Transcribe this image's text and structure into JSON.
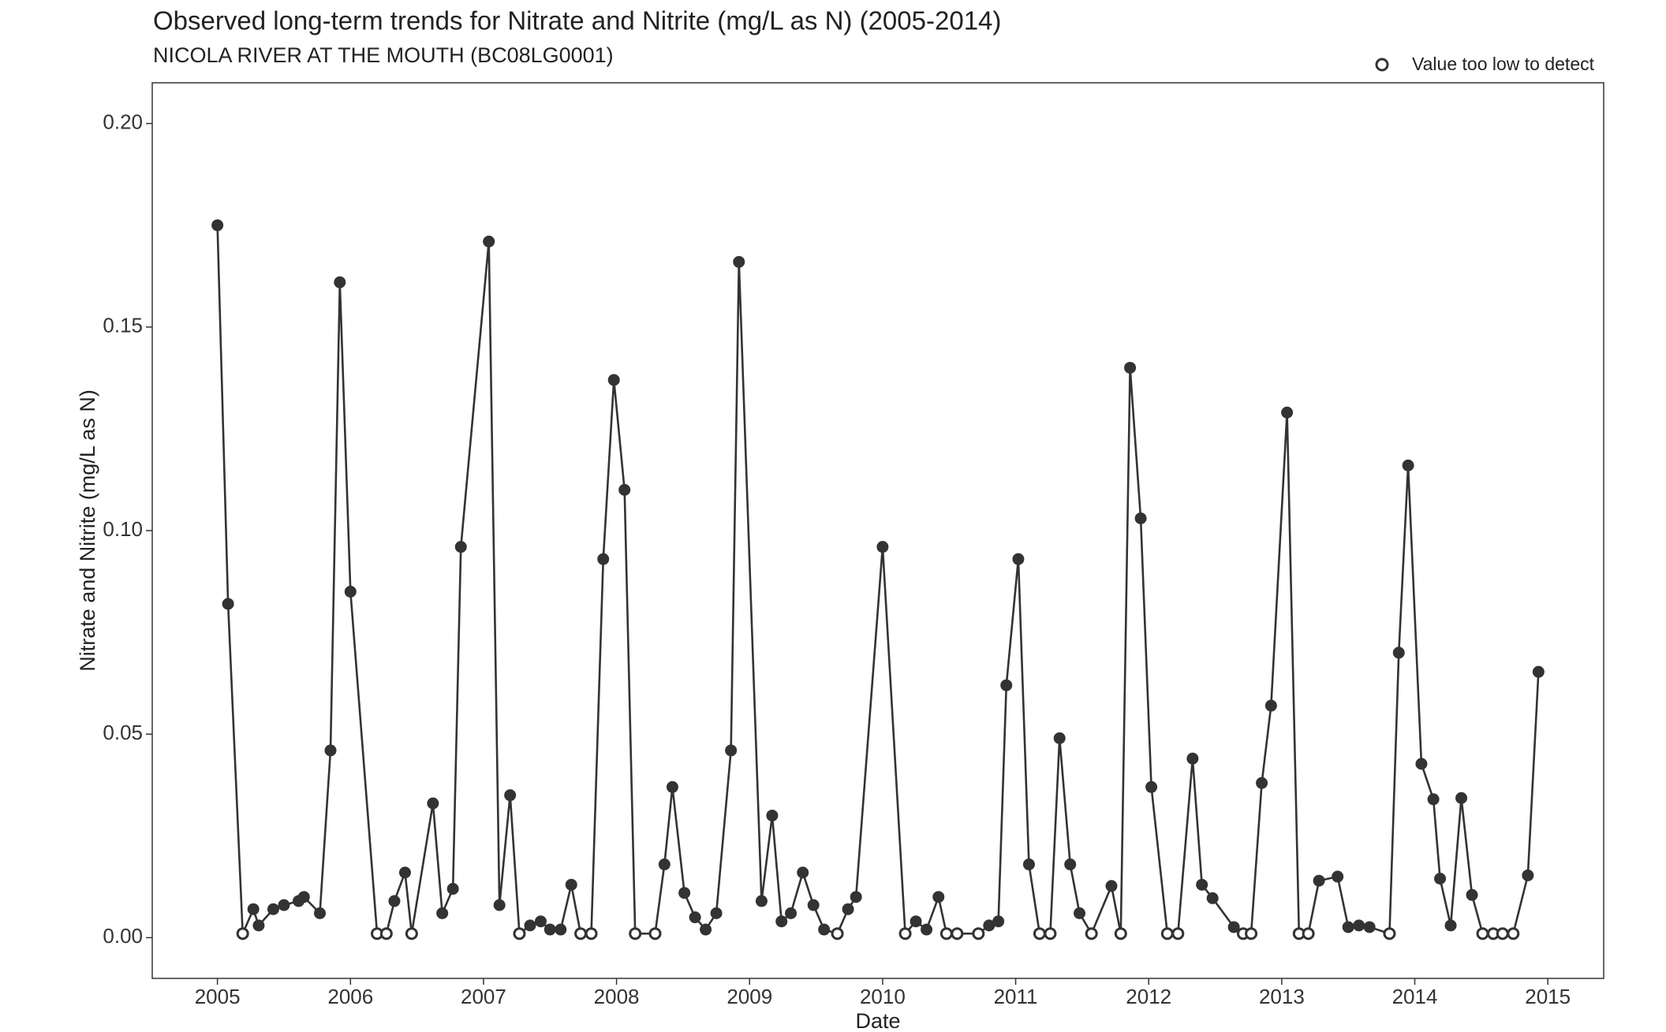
{
  "chart_data": {
    "type": "line",
    "title": "Observed long-term trends for Nitrate and Nitrite (mg/L as N) (2005-2014)",
    "subtitle": "NICOLA RIVER AT THE MOUTH (BC08LG0001)",
    "x_label": "Date",
    "y_label": "Nitrate and Nitrite (mg/L as N)",
    "color": "#333333",
    "legend": {
      "label": "Value too low to detect",
      "position": "top-right"
    },
    "x": [
      2005.0,
      2005.08,
      2005.19,
      2005.27,
      2005.31,
      2005.42,
      2005.5,
      2005.61,
      2005.65,
      2005.77,
      2005.85,
      2005.92,
      2006.0,
      2006.2,
      2006.27,
      2006.33,
      2006.41,
      2006.46,
      2006.62,
      2006.69,
      2006.77,
      2006.83,
      2007.04,
      2007.12,
      2007.2,
      2007.27,
      2007.35,
      2007.43,
      2007.5,
      2007.58,
      2007.66,
      2007.73,
      2007.81,
      2007.9,
      2007.98,
      2008.06,
      2008.14,
      2008.29,
      2008.36,
      2008.42,
      2008.51,
      2008.59,
      2008.67,
      2008.75,
      2008.86,
      2008.92,
      2009.09,
      2009.17,
      2009.24,
      2009.31,
      2009.4,
      2009.48,
      2009.56,
      2009.66,
      2009.74,
      2009.8,
      2010.0,
      2010.17,
      2010.25,
      2010.33,
      2010.42,
      2010.48,
      2010.56,
      2010.72,
      2010.8,
      2010.87,
      2010.93,
      2011.02,
      2011.1,
      2011.18,
      2011.26,
      2011.33,
      2011.41,
      2011.48,
      2011.57,
      2011.72,
      2011.79,
      2011.86,
      2011.94,
      2012.02,
      2012.14,
      2012.22,
      2012.33,
      2012.4,
      2012.48,
      2012.64,
      2012.71,
      2012.77,
      2012.85,
      2012.92,
      2013.04,
      2013.13,
      2013.2,
      2013.28,
      2013.42,
      2013.5,
      2013.58,
      2013.66,
      2013.81,
      2013.88,
      2013.95,
      2014.05,
      2014.14,
      2014.19,
      2014.27,
      2014.35,
      2014.43,
      2014.51,
      2014.59,
      2014.66,
      2014.74,
      2014.85,
      2014.93
    ],
    "values": [
      0.175,
      0.082,
      0.001,
      0.007,
      0.003,
      0.007,
      0.008,
      0.009,
      0.01,
      0.006,
      0.046,
      0.161,
      0.085,
      0.001,
      0.001,
      0.009,
      0.016,
      0.001,
      0.033,
      0.006,
      0.012,
      0.096,
      0.171,
      0.008,
      0.035,
      0.001,
      0.003,
      0.004,
      0.002,
      0.002,
      0.013,
      0.001,
      0.001,
      0.093,
      0.137,
      0.11,
      0.001,
      0.001,
      0.018,
      0.037,
      0.011,
      0.005,
      0.002,
      0.006,
      0.046,
      0.166,
      0.009,
      0.03,
      0.004,
      0.006,
      0.016,
      0.008,
      0.002,
      0.001,
      0.007,
      0.01,
      0.096,
      0.001,
      0.004,
      0.002,
      0.01,
      0.001,
      0.001,
      0.001,
      0.003,
      0.004,
      0.062,
      0.093,
      0.018,
      0.001,
      0.001,
      0.049,
      0.018,
      0.006,
      0.001,
      0.0127,
      0.001,
      0.14,
      0.103,
      0.037,
      0.001,
      0.001,
      0.044,
      0.013,
      0.0097,
      0.0026,
      0.001,
      0.001,
      0.038,
      0.057,
      0.129,
      0.001,
      0.001,
      0.014,
      0.015,
      0.0026,
      0.003,
      0.0026,
      0.001,
      0.07,
      0.116,
      0.0427,
      0.034,
      0.0145,
      0.003,
      0.0343,
      0.0105,
      0.001,
      0.001,
      0.001,
      0.001,
      0.0153,
      0.0653
    ],
    "below_detection": [
      false,
      false,
      true,
      false,
      false,
      false,
      false,
      false,
      false,
      false,
      false,
      false,
      false,
      true,
      true,
      false,
      false,
      true,
      false,
      false,
      false,
      false,
      false,
      false,
      false,
      true,
      false,
      false,
      false,
      false,
      false,
      true,
      true,
      false,
      false,
      false,
      true,
      true,
      false,
      false,
      false,
      false,
      false,
      false,
      false,
      false,
      false,
      false,
      false,
      false,
      false,
      false,
      false,
      true,
      false,
      false,
      false,
      true,
      false,
      false,
      false,
      true,
      true,
      true,
      false,
      false,
      false,
      false,
      false,
      true,
      true,
      false,
      false,
      false,
      true,
      false,
      true,
      false,
      false,
      false,
      true,
      true,
      false,
      false,
      false,
      false,
      true,
      true,
      false,
      false,
      false,
      true,
      true,
      false,
      false,
      false,
      false,
      false,
      true,
      false,
      false,
      false,
      false,
      false,
      false,
      false,
      false,
      true,
      true,
      true,
      true,
      false,
      false
    ],
    "xlim": [
      2004.51,
      2015.42
    ],
    "xticks": [
      2005,
      2006,
      2007,
      2008,
      2009,
      2010,
      2011,
      2012,
      2013,
      2014,
      2015
    ],
    "ylim": [
      -0.01,
      0.21
    ],
    "yticks": [
      {
        "value": 0,
        "label": "0.00"
      },
      {
        "value": 0.05,
        "label": "0.05"
      },
      {
        "value": 0.1,
        "label": "0.10"
      },
      {
        "value": 0.15,
        "label": "0.15"
      },
      {
        "value": 0.2,
        "label": "0.20"
      }
    ],
    "grid": false
  }
}
